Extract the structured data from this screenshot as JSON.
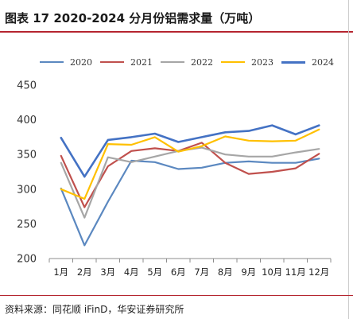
{
  "header": {
    "title": "图表 17 2020-2024 分月份铝需求量（万吨）"
  },
  "footer": {
    "source": "资料来源：同花顺 iFinD，华安证券研究所"
  },
  "chart_data": {
    "type": "line",
    "title": "图表 17 2020-2024 分月份铝需求量（万吨）",
    "xlabel": "",
    "ylabel": "",
    "ylim": [
      200,
      450
    ],
    "yticks": [
      200,
      250,
      300,
      350,
      400,
      450
    ],
    "grid": false,
    "legend_position": "top",
    "categories": [
      "1月",
      "2月",
      "3月",
      "4月",
      "5月",
      "6月",
      "7月",
      "8月",
      "9月",
      "10月",
      "11月",
      "12月"
    ],
    "series": [
      {
        "name": "2020",
        "color": "#5b88c0",
        "values": [
          301,
          219,
          282,
          341,
          339,
          329,
          331,
          338,
          340,
          338,
          338,
          344
        ]
      },
      {
        "name": "2021",
        "color": "#c0504d",
        "values": [
          348,
          274,
          333,
          355,
          359,
          355,
          367,
          338,
          322,
          325,
          330,
          351
        ]
      },
      {
        "name": "2022",
        "color": "#a6a6a6",
        "values": [
          338,
          259,
          346,
          339,
          347,
          355,
          360,
          350,
          347,
          347,
          353,
          358
        ]
      },
      {
        "name": "2023",
        "color": "#ffc000",
        "values": [
          300,
          286,
          365,
          364,
          375,
          354,
          362,
          376,
          370,
          369,
          370,
          386
        ]
      },
      {
        "name": "2024",
        "color": "#4472c4",
        "values": [
          374,
          318,
          371,
          375,
          380,
          368,
          375,
          382,
          384,
          392,
          379,
          392
        ]
      }
    ]
  }
}
